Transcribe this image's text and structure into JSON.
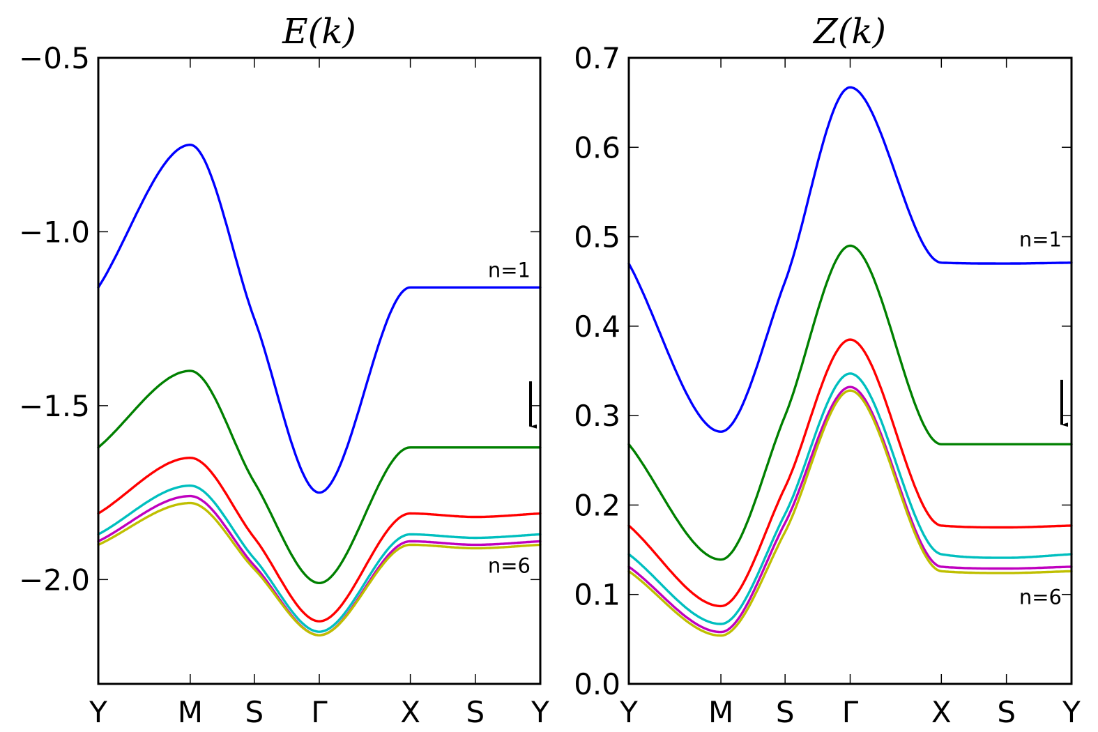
{
  "chart_data": [
    {
      "type": "line",
      "title": "E(k)",
      "x": [
        "Y",
        "M",
        "S",
        "Γ",
        "X",
        "S",
        "Y"
      ],
      "ylim": [
        -2.3,
        -0.5
      ],
      "yticks": [
        -0.5,
        -1.0,
        -1.5,
        -2.0
      ],
      "ytick_labels": [
        "−0.5",
        "−1.0",
        "−1.5",
        "−2.0"
      ],
      "grid": false,
      "series": [
        {
          "color": "#0000ff",
          "values": [
            -1.16,
            -0.75,
            -1.25,
            -1.75,
            -1.16,
            -1.16,
            -1.16
          ]
        },
        {
          "color": "#008000",
          "values": [
            -1.62,
            -1.4,
            -1.72,
            -2.01,
            -1.62,
            -1.62,
            -1.62
          ]
        },
        {
          "color": "#ff0000",
          "values": [
            -1.81,
            -1.65,
            -1.88,
            -2.12,
            -1.81,
            -1.82,
            -1.81
          ]
        },
        {
          "color": "#00bfbf",
          "values": [
            -1.87,
            -1.73,
            -1.94,
            -2.15,
            -1.87,
            -1.88,
            -1.87
          ]
        },
        {
          "color": "#bf00bf",
          "values": [
            -1.89,
            -1.76,
            -1.96,
            -2.16,
            -1.89,
            -1.9,
            -1.89
          ]
        },
        {
          "color": "#bfbf00",
          "values": [
            -1.9,
            -1.78,
            -1.97,
            -2.16,
            -1.9,
            -1.91,
            -1.9
          ]
        }
      ],
      "annotations": [
        {
          "text": "n=1",
          "x": 6.0,
          "y": -1.11
        },
        {
          "text": "n=6",
          "x": 6.0,
          "y": -1.96
        }
      ],
      "arrow": {
        "x": 5.85,
        "from": -1.43,
        "to": -1.58
      }
    },
    {
      "type": "line",
      "title": "Z(k)",
      "x": [
        "Y",
        "M",
        "S",
        "Γ",
        "X",
        "S",
        "Y"
      ],
      "ylim": [
        0.0,
        0.7
      ],
      "yticks": [
        0.0,
        0.1,
        0.2,
        0.3,
        0.4,
        0.5,
        0.6,
        0.7
      ],
      "ytick_labels": [
        "0.0",
        "0.1",
        "0.2",
        "0.3",
        "0.4",
        "0.5",
        "0.6",
        "0.7"
      ],
      "grid": false,
      "series": [
        {
          "color": "#0000ff",
          "values": [
            0.47,
            0.282,
            0.45,
            0.667,
            0.471,
            0.47,
            0.471
          ]
        },
        {
          "color": "#008000",
          "values": [
            0.268,
            0.139,
            0.3,
            0.49,
            0.268,
            0.268,
            0.268
          ]
        },
        {
          "color": "#ff0000",
          "values": [
            0.177,
            0.087,
            0.22,
            0.385,
            0.177,
            0.175,
            0.177
          ]
        },
        {
          "color": "#00bfbf",
          "values": [
            0.145,
            0.067,
            0.19,
            0.347,
            0.145,
            0.141,
            0.145
          ]
        },
        {
          "color": "#bf00bf",
          "values": [
            0.131,
            0.058,
            0.18,
            0.332,
            0.131,
            0.129,
            0.131
          ]
        },
        {
          "color": "#bfbf00",
          "values": [
            0.126,
            0.054,
            0.17,
            0.328,
            0.126,
            0.124,
            0.126
          ]
        }
      ],
      "annotations": [
        {
          "text": "n=1",
          "x": 6.0,
          "y": 0.497
        },
        {
          "text": "n=6",
          "x": 6.0,
          "y": 0.097
        }
      ],
      "arrow": {
        "x": 5.85,
        "from": 0.34,
        "to": 0.282
      }
    }
  ]
}
